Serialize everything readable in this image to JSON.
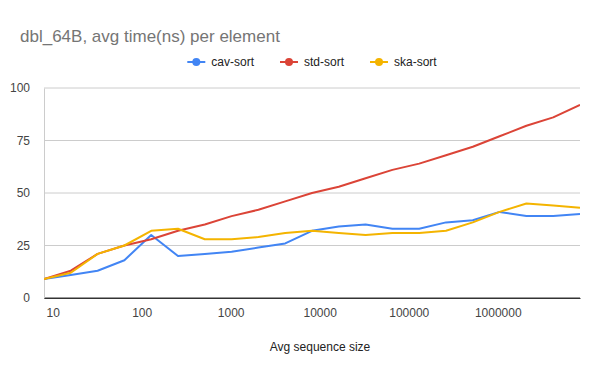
{
  "chart_data": {
    "type": "line",
    "title": "dbl_64B, avg time(ns) per element",
    "x_label": "Avg sequence size",
    "x": [
      8,
      16,
      32,
      64,
      128,
      256,
      512,
      1024,
      2048,
      4096,
      8192,
      16384,
      32768,
      65536,
      131072,
      262144,
      524288,
      1048576,
      2097152,
      4194304,
      8388608
    ],
    "series": [
      {
        "name": "cav-sort",
        "color": "#4285f4",
        "values": [
          9,
          11,
          13,
          18,
          30,
          20,
          21,
          22,
          24,
          26,
          32,
          34,
          35,
          33,
          33,
          36,
          37,
          41,
          39,
          39,
          40
        ]
      },
      {
        "name": "std-sort",
        "color": "#db4437",
        "values": [
          9,
          13,
          21,
          25,
          28,
          32,
          35,
          39,
          42,
          46,
          50,
          53,
          57,
          61,
          64,
          68,
          72,
          77,
          82,
          86,
          92
        ]
      },
      {
        "name": "ska-sort",
        "color": "#f4b400",
        "values": [
          9,
          12,
          21,
          25,
          32,
          33,
          28,
          28,
          29,
          31,
          32,
          31,
          30,
          31,
          31,
          32,
          36,
          41,
          45,
          44,
          43
        ]
      }
    ],
    "xlim": [
      8,
      8388608
    ],
    "xticks": [
      10,
      100,
      1000,
      10000,
      100000,
      1000000
    ],
    "ylim": [
      0,
      100
    ],
    "yticks": [
      0,
      25,
      50,
      75,
      100
    ],
    "log": "x",
    "grid": true,
    "legend": "top"
  }
}
